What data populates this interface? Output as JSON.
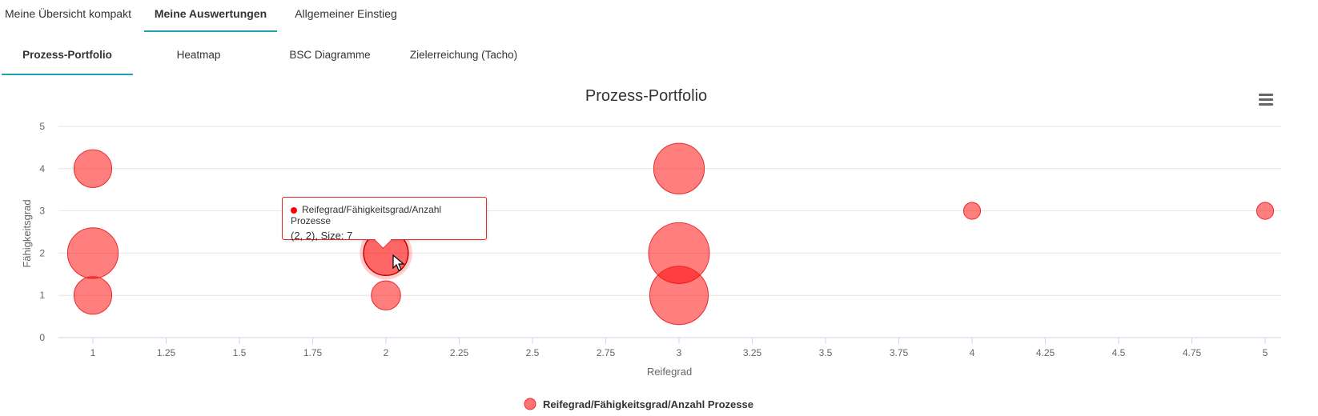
{
  "tabs_main": [
    {
      "label": "Meine Übersicht kompakt",
      "active": false
    },
    {
      "label": "Meine Auswertungen",
      "active": true
    },
    {
      "label": "Allgemeiner Einstieg",
      "active": false
    }
  ],
  "tabs_sub": [
    {
      "label": "Prozess-Portfolio",
      "active": true
    },
    {
      "label": "Heatmap",
      "active": false
    },
    {
      "label": "BSC Diagramme",
      "active": false
    },
    {
      "label": "Zielerreichung (Tacho)",
      "active": false
    }
  ],
  "colors": {
    "accent": "#1ea2b4",
    "bubble": "#ff0000",
    "tooltip_border": "#e8292b"
  },
  "tooltip": {
    "series": "Reifegrad/Fähigkeitsgrad/Anzahl Prozesse",
    "value_text": "(2, 2), Size: 7"
  },
  "chart_data": {
    "type": "scatter",
    "subtype": "bubble",
    "title": "Prozess-Portfolio",
    "xlabel": "Reifegrad",
    "ylabel": "Fähigkeitsgrad",
    "xlim": [
      1,
      5
    ],
    "ylim": [
      0,
      5
    ],
    "x_ticks": [
      "1",
      "1.25",
      "1.5",
      "1.75",
      "2",
      "2.25",
      "2.5",
      "2.75",
      "3",
      "3.25",
      "3.5",
      "3.75",
      "4",
      "4.25",
      "4.5",
      "4.75",
      "5"
    ],
    "y_ticks": [
      "0",
      "1",
      "2",
      "3",
      "4",
      "5"
    ],
    "grid": true,
    "legend_position": "bottom-center",
    "series": [
      {
        "name": "Reifegrad/Fähigkeitsgrad/Anzahl Prozesse",
        "points": [
          {
            "x": 1,
            "y": 4,
            "size": 5
          },
          {
            "x": 1,
            "y": 2,
            "size": 9
          },
          {
            "x": 1,
            "y": 1,
            "size": 5
          },
          {
            "x": 2,
            "y": 2,
            "size": 7,
            "highlighted": true
          },
          {
            "x": 2,
            "y": 1,
            "size": 3
          },
          {
            "x": 3,
            "y": 4,
            "size": 9
          },
          {
            "x": 3,
            "y": 2,
            "size": 13
          },
          {
            "x": 3,
            "y": 1,
            "size": 12
          },
          {
            "x": 4,
            "y": 3,
            "size": 1
          },
          {
            "x": 5,
            "y": 3,
            "size": 1
          }
        ]
      }
    ]
  }
}
